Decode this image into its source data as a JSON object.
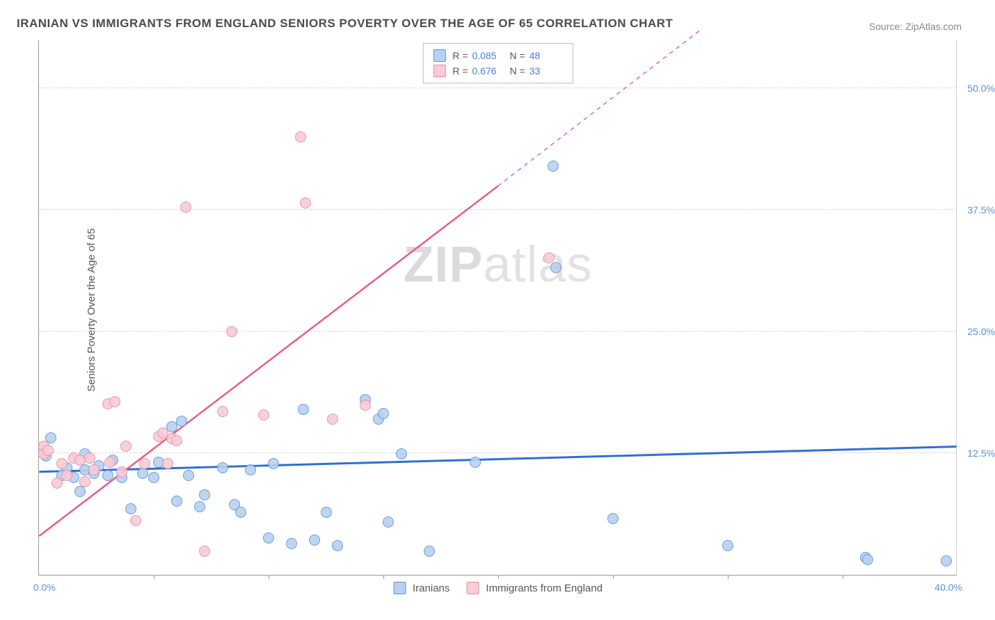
{
  "title": "IRANIAN VS IMMIGRANTS FROM ENGLAND SENIORS POVERTY OVER THE AGE OF 65 CORRELATION CHART",
  "source_label": "Source: ",
  "source_name": "ZipAtlas.com",
  "y_axis_label": "Seniors Poverty Over the Age of 65",
  "watermark_a": "ZIP",
  "watermark_b": "atlas",
  "chart": {
    "type": "scatter",
    "xlim": [
      0,
      40
    ],
    "ylim": [
      0,
      55
    ],
    "x_origin_label": "0.0%",
    "x_max_label": "40.0%",
    "x_ticks": [
      5,
      10,
      15,
      20,
      25,
      30,
      35
    ],
    "y_gridlines": [
      {
        "value": 12.5,
        "label": "12.5%"
      },
      {
        "value": 25.0,
        "label": "25.0%"
      },
      {
        "value": 37.5,
        "label": "37.5%"
      },
      {
        "value": 50.0,
        "label": "50.0%"
      }
    ],
    "background_color": "#ffffff",
    "grid_color": "#d5d5d5",
    "axis_color": "#999999",
    "tick_label_color": "#5b8fd6",
    "marker_radius": 8,
    "marker_stroke_width": 1.2,
    "marker_fill_opacity": 0.35,
    "series": [
      {
        "id": "iranians",
        "legend_label": "Iranians",
        "fill": "#b9d0ee",
        "stroke": "#5a93d9",
        "stats": {
          "R": "0.085",
          "N": "48"
        },
        "trend": {
          "x1": 0,
          "y1": 10.6,
          "x2": 40,
          "y2": 13.2,
          "stroke": "#2f6fd0",
          "width": 3,
          "dash": null
        },
        "points": [
          [
            0.3,
            12.2
          ],
          [
            0.5,
            14.1
          ],
          [
            1.0,
            10.2
          ],
          [
            1.2,
            11.0
          ],
          [
            1.5,
            10.0
          ],
          [
            1.8,
            8.6
          ],
          [
            2.0,
            12.4
          ],
          [
            2.0,
            10.8
          ],
          [
            2.4,
            10.4
          ],
          [
            2.6,
            11.2
          ],
          [
            3.0,
            10.2
          ],
          [
            3.2,
            11.8
          ],
          [
            3.6,
            10.0
          ],
          [
            4.0,
            6.8
          ],
          [
            4.5,
            10.4
          ],
          [
            5.0,
            10.0
          ],
          [
            5.2,
            11.6
          ],
          [
            5.8,
            15.2
          ],
          [
            6.0,
            7.6
          ],
          [
            6.2,
            15.8
          ],
          [
            6.5,
            10.2
          ],
          [
            7.0,
            7.0
          ],
          [
            7.2,
            8.2
          ],
          [
            8.0,
            11.0
          ],
          [
            8.5,
            7.2
          ],
          [
            8.8,
            6.4
          ],
          [
            9.2,
            10.8
          ],
          [
            10.0,
            3.8
          ],
          [
            10.2,
            11.4
          ],
          [
            11.0,
            3.2
          ],
          [
            11.5,
            17.0
          ],
          [
            12.0,
            3.6
          ],
          [
            12.5,
            6.4
          ],
          [
            13.0,
            3.0
          ],
          [
            14.2,
            18.0
          ],
          [
            14.8,
            16.0
          ],
          [
            15.0,
            16.6
          ],
          [
            15.2,
            5.4
          ],
          [
            15.8,
            12.4
          ],
          [
            17.0,
            2.4
          ],
          [
            19.0,
            11.6
          ],
          [
            22.5,
            31.6
          ],
          [
            22.4,
            42.0
          ],
          [
            25.0,
            5.8
          ],
          [
            30.0,
            3.0
          ],
          [
            36.0,
            1.8
          ],
          [
            36.1,
            1.6
          ],
          [
            39.5,
            1.4
          ]
        ]
      },
      {
        "id": "england",
        "legend_label": "Immigrants from England",
        "fill": "#f6cdd6",
        "stroke": "#e88aa2",
        "stats": {
          "R": "0.676",
          "N": "33"
        },
        "trend": {
          "x1": 0,
          "y1": 4.0,
          "x2": 20,
          "y2": 40.0,
          "stroke": "#e75d87",
          "width": 2.5,
          "dash": null
        },
        "trend_ext": {
          "x1": 20,
          "y1": 40.0,
          "x2": 28.8,
          "y2": 56.0,
          "stroke": "#e75d87",
          "width": 1.4,
          "dash": "6 6"
        },
        "points": [
          [
            0.2,
            13.2
          ],
          [
            0.2,
            12.4
          ],
          [
            0.4,
            12.8
          ],
          [
            0.8,
            9.4
          ],
          [
            1.0,
            11.4
          ],
          [
            1.2,
            10.2
          ],
          [
            1.5,
            12.0
          ],
          [
            1.8,
            11.8
          ],
          [
            2.0,
            9.6
          ],
          [
            2.2,
            12.0
          ],
          [
            2.4,
            10.8
          ],
          [
            3.0,
            17.6
          ],
          [
            3.1,
            11.6
          ],
          [
            3.3,
            17.8
          ],
          [
            3.6,
            10.6
          ],
          [
            3.8,
            13.2
          ],
          [
            4.2,
            5.6
          ],
          [
            4.6,
            11.4
          ],
          [
            5.2,
            14.2
          ],
          [
            5.4,
            14.6
          ],
          [
            5.6,
            11.4
          ],
          [
            5.8,
            14.0
          ],
          [
            6.0,
            13.8
          ],
          [
            6.4,
            37.8
          ],
          [
            7.2,
            2.4
          ],
          [
            8.0,
            16.8
          ],
          [
            8.4,
            25.0
          ],
          [
            9.8,
            16.4
          ],
          [
            11.4,
            45.0
          ],
          [
            11.6,
            38.2
          ],
          [
            12.8,
            16.0
          ],
          [
            14.2,
            17.4
          ],
          [
            22.2,
            32.6
          ]
        ]
      }
    ]
  },
  "stats_legend_labels": {
    "R": "R =",
    "N": "N ="
  }
}
